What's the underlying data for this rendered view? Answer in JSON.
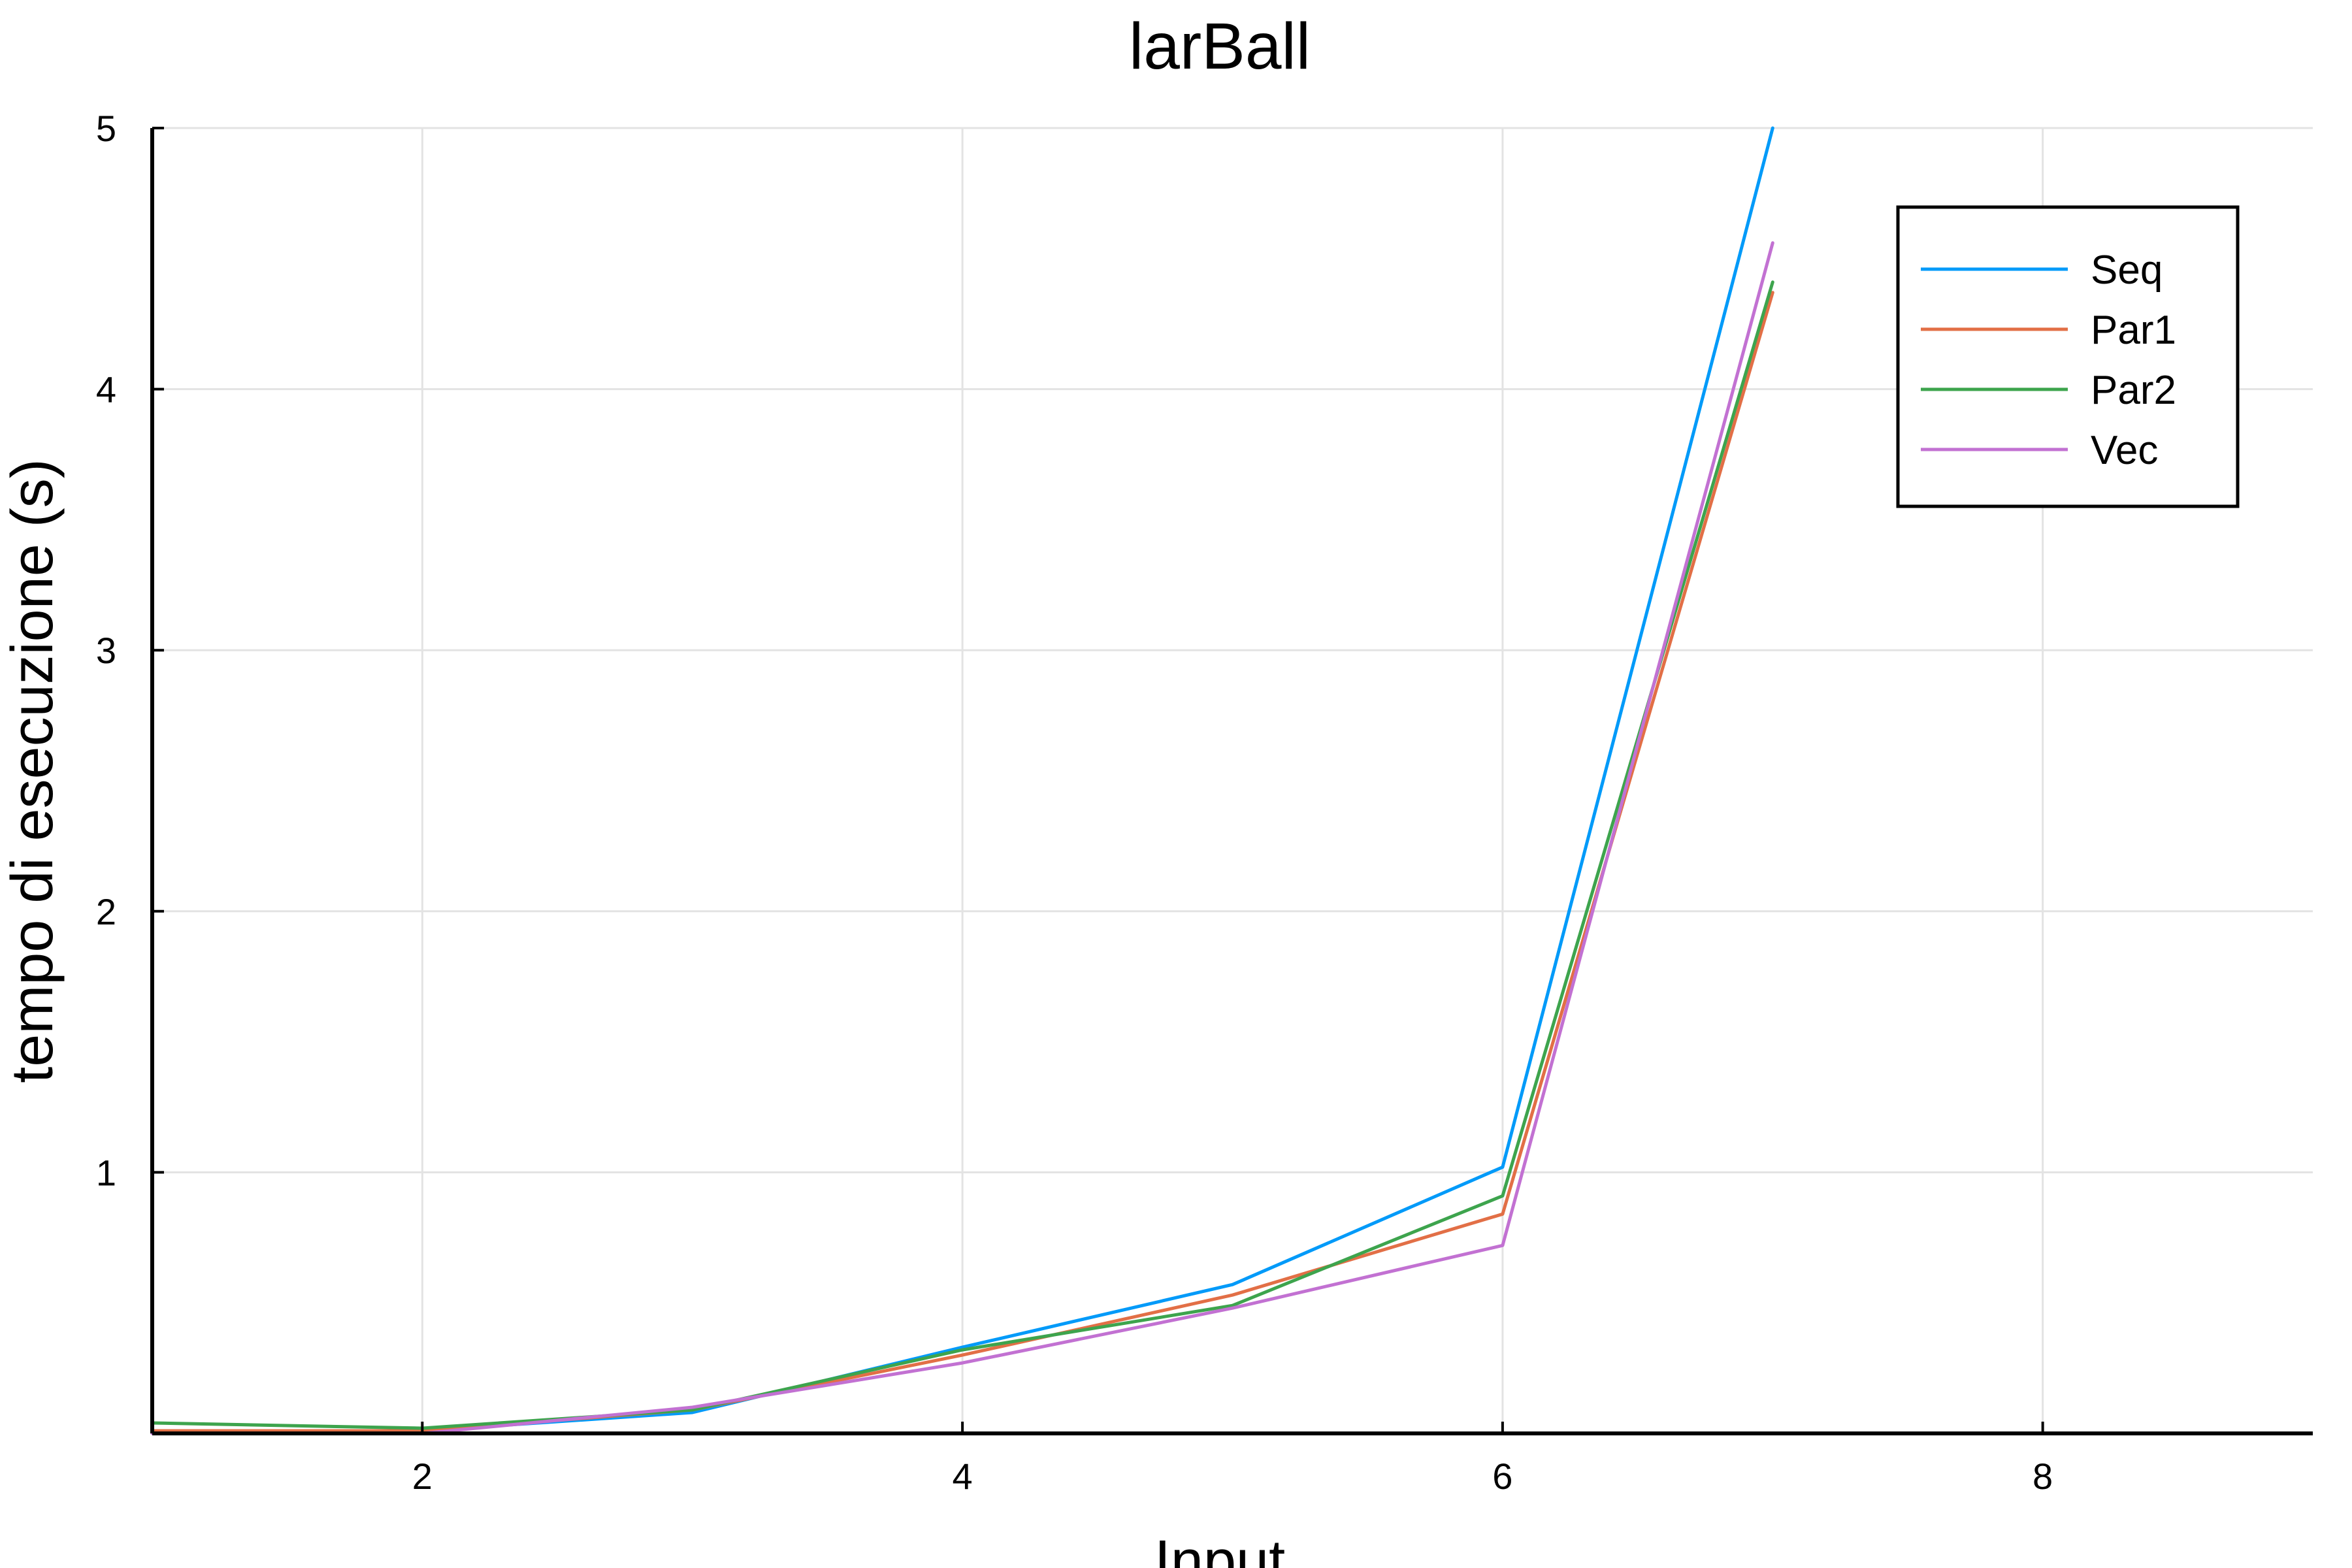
{
  "chart_data": {
    "type": "line",
    "title": "larBall",
    "xlabel": "Input",
    "ylabel": "tempo di esecuzione (s)",
    "xlim": [
      1,
      9
    ],
    "ylim": [
      0,
      5
    ],
    "xticks": [
      2,
      4,
      6,
      8
    ],
    "yticks": [
      1,
      2,
      3,
      4,
      5
    ],
    "xtick_labels": [
      "2",
      "4",
      "6",
      "8"
    ],
    "ytick_labels": [
      "1",
      "2",
      "3",
      "4",
      "5"
    ],
    "grid": true,
    "legend_position": "top-right",
    "x": [
      1,
      2,
      3,
      4,
      5,
      6,
      7
    ],
    "series": [
      {
        "name": "Seq",
        "color": "#009af9",
        "values": [
          0.01,
          0.01,
          0.08,
          0.33,
          0.57,
          1.02,
          5.0
        ]
      },
      {
        "name": "Par1",
        "color": "#e26f46",
        "values": [
          0.01,
          0.01,
          0.09,
          0.3,
          0.53,
          0.84,
          4.37
        ]
      },
      {
        "name": "Par2",
        "color": "#3da44d",
        "values": [
          0.04,
          0.02,
          0.09,
          0.32,
          0.49,
          0.91,
          4.41
        ]
      },
      {
        "name": "Vec",
        "color": "#c271d2",
        "values": [
          0.0,
          0.0,
          0.1,
          0.27,
          0.48,
          0.72,
          4.56
        ]
      }
    ]
  }
}
